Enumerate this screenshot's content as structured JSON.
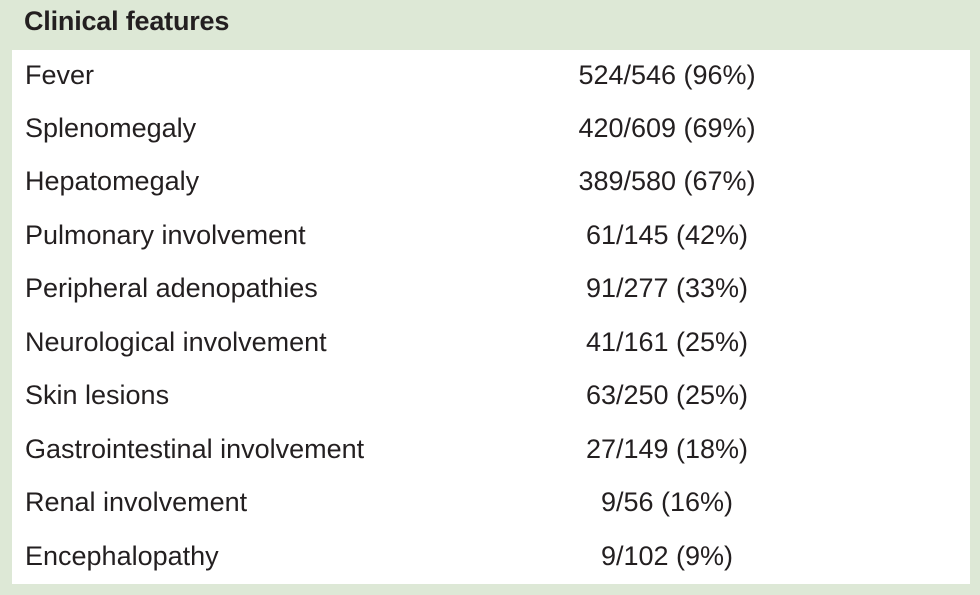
{
  "table": {
    "header": "Clinical features",
    "rows": [
      {
        "label": "Fever",
        "value": "524/546 (96%)"
      },
      {
        "label": "Splenomegaly",
        "value": "420/609 (69%)"
      },
      {
        "label": "Hepatomegaly",
        "value": "389/580 (67%)"
      },
      {
        "label": "Pulmonary involvement",
        "value": "61/145 (42%)"
      },
      {
        "label": "Peripheral adenopathies",
        "value": "91/277 (33%)"
      },
      {
        "label": "Neurological involvement",
        "value": "41/161 (25%)"
      },
      {
        "label": "Skin lesions",
        "value": "63/250 (25%)"
      },
      {
        "label": "Gastrointestinal involvement",
        "value": "27/149 (18%)"
      },
      {
        "label": "Renal involvement",
        "value": "9/56 (16%)"
      },
      {
        "label": "Encephalopathy",
        "value": "9/102 (9%)"
      }
    ]
  },
  "colors": {
    "header_background": "#dde8d6",
    "body_background": "#ffffff",
    "text": "#231f20"
  }
}
